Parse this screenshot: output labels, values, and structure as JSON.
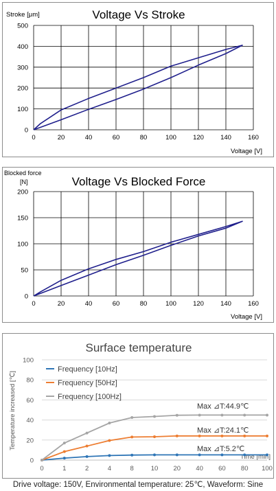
{
  "chart_data": [
    {
      "type": "line",
      "title": "Voltage Vs Stroke",
      "xlabel": "Voltage [V]",
      "ylabel": "Stroke [μm]",
      "xlim": [
        0,
        160
      ],
      "ylim": [
        0,
        500
      ],
      "xticks": [
        0,
        20,
        40,
        60,
        80,
        100,
        120,
        140,
        160
      ],
      "yticks": [
        0,
        100,
        200,
        300,
        400,
        500
      ],
      "grid": true,
      "series": [
        {
          "color": "#1f1f8c",
          "x": [
            0,
            5,
            20,
            40,
            60,
            80,
            100,
            120,
            140,
            152,
            140,
            120,
            100,
            80,
            60,
            40,
            20,
            5,
            0
          ],
          "y": [
            0,
            30,
            95,
            150,
            200,
            250,
            305,
            345,
            385,
            405,
            365,
            310,
            250,
            195,
            145,
            98,
            48,
            12,
            0
          ]
        }
      ]
    },
    {
      "type": "line",
      "title": "Voltage Vs Blocked Force",
      "xlabel": "Voltage [V]",
      "ylabel_line1": "Blocked force",
      "ylabel_line2": "[N]",
      "xlim": [
        0,
        160
      ],
      "ylim": [
        0,
        200
      ],
      "xticks": [
        0,
        20,
        40,
        60,
        80,
        100,
        120,
        140,
        160
      ],
      "yticks": [
        0,
        50,
        100,
        150,
        200
      ],
      "grid": true,
      "series": [
        {
          "color": "#1f1f8c",
          "x": [
            0,
            5,
            20,
            40,
            60,
            80,
            100,
            120,
            140,
            152,
            140,
            120,
            100,
            80,
            60,
            40,
            20,
            5,
            0
          ],
          "y": [
            0,
            8,
            30,
            52,
            70,
            85,
            103,
            118,
            133,
            143,
            130,
            115,
            97,
            78,
            60,
            40,
            20,
            5,
            0
          ]
        }
      ]
    },
    {
      "type": "line",
      "title": "Surface temperature",
      "xlabel": "Time [min]",
      "ylabel": "Temperature increased [℃]",
      "ylim": [
        0,
        100
      ],
      "yticks": [
        0,
        20,
        40,
        60,
        80,
        100
      ],
      "x": [
        0,
        1,
        2,
        4,
        8,
        10,
        20,
        40,
        60,
        80,
        100
      ],
      "grid": true,
      "legend": "top-left",
      "series": [
        {
          "name": "Frequency [10Hz]",
          "color": "#2e75b6",
          "values": [
            0,
            2,
            3.5,
            4.5,
            5,
            5.2,
            5.2,
            5.2,
            5.2,
            5.2,
            5.2
          ]
        },
        {
          "name": "Frequency [50Hz]",
          "color": "#ed7d31",
          "values": [
            0,
            8.5,
            14,
            19.5,
            23,
            23.3,
            24.1,
            24.1,
            24.1,
            24.1,
            24.1
          ]
        },
        {
          "name": "Frequency [100Hz]",
          "color": "#a5a5a5",
          "values": [
            0,
            17,
            27,
            37,
            42.5,
            43.5,
            44.7,
            44.9,
            44.9,
            44.9,
            44.9
          ]
        }
      ],
      "annotations": [
        "Max ⊿T:44.9℃",
        "Max ⊿T:24.1℃",
        "Max ⊿T:5.2℃"
      ]
    }
  ],
  "footer": "Drive voltage: 150V, Environmental temperature: 25℃, Waveform: Sine"
}
